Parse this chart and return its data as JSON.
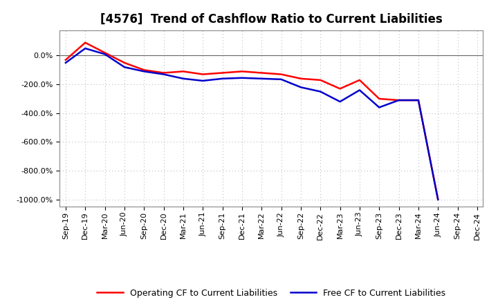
{
  "title": "[4576]  Trend of Cashflow Ratio to Current Liabilities",
  "x_labels": [
    "Sep-19",
    "Dec-19",
    "Mar-20",
    "Jun-20",
    "Sep-20",
    "Dec-20",
    "Mar-21",
    "Jun-21",
    "Sep-21",
    "Dec-21",
    "Mar-22",
    "Jun-22",
    "Sep-22",
    "Dec-22",
    "Mar-23",
    "Jun-23",
    "Sep-23",
    "Dec-23",
    "Mar-24",
    "Jun-24",
    "Sep-24",
    "Dec-24"
  ],
  "operating_cf": [
    -30,
    90,
    20,
    -50,
    -100,
    -120,
    -110,
    -130,
    -120,
    -110,
    -120,
    -130,
    -160,
    -170,
    -230,
    -170,
    -300,
    -310,
    -310,
    -1000,
    null,
    null
  ],
  "free_cf": [
    -50,
    50,
    10,
    -80,
    -110,
    -130,
    -160,
    -175,
    -160,
    -155,
    -160,
    -165,
    -220,
    -250,
    -320,
    -240,
    -360,
    -310,
    -310,
    -1000,
    null,
    null
  ],
  "ylim": [
    -1050,
    175
  ],
  "yticks": [
    0,
    -200,
    -400,
    -600,
    -800,
    -1000
  ],
  "operating_color": "#ff0000",
  "free_color": "#0000cc",
  "background_color": "#ffffff",
  "grid_color": "#bbbbbb",
  "legend_operating": "Operating CF to Current Liabilities",
  "legend_free": "Free CF to Current Liabilities",
  "title_fontsize": 12,
  "tick_fontsize": 8
}
